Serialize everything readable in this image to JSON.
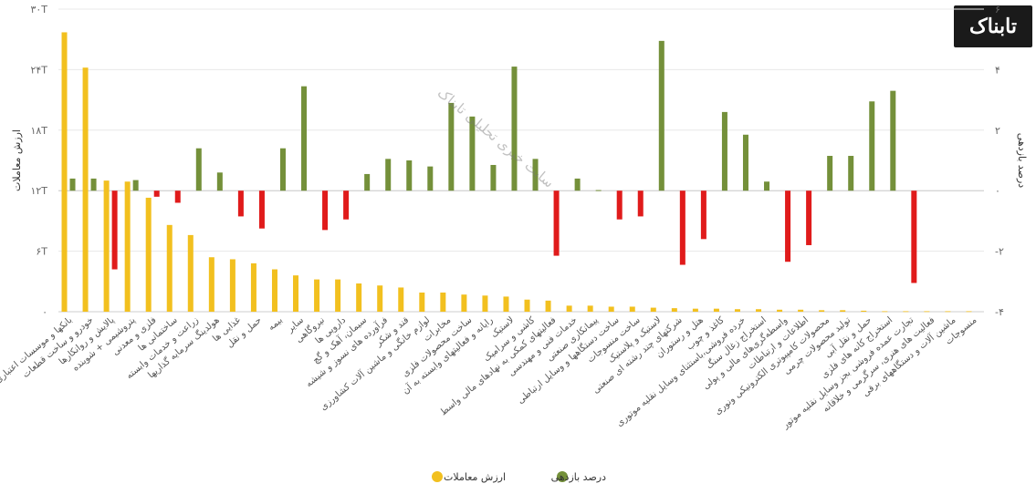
{
  "logo": {
    "text": "تابناک"
  },
  "chart_data": {
    "type": "bar",
    "title": "",
    "left_axis": {
      "label": "ارزش معاملات",
      "ylim": [
        0,
        30
      ],
      "ticks": [
        "۰",
        "۶T",
        "۱۲T",
        "۱۸T",
        "۲۴T",
        "۳۰T"
      ]
    },
    "right_axis": {
      "label": "درصد بازدهی",
      "ylim": [
        -4,
        6
      ],
      "ticks": [
        "-۴",
        "-۲",
        "۰",
        "۲",
        "۴",
        "۶"
      ]
    },
    "legend": {
      "value_label": "ارزش معاملات",
      "return_label": "درصد بازدهی",
      "position": "bottom"
    },
    "colors": {
      "value": "#f2c01f",
      "return_pos": "#74903a",
      "return_neg": "#e01b1b"
    },
    "categories": [
      "بانکها و موسسات اعتباری",
      "خودرو و ساخت قطعات",
      "پالایش و روانکارها",
      "پتروشیمی + شوینده",
      "فلزی و معدنی",
      "ساختمانی ها",
      "زراعت و خدمات وابسته",
      "هولدینگ سرمایه گذاریها",
      "غذایی ها",
      "حمل و نقل",
      "بیمه",
      "سایر",
      "نیروگاهی",
      "دارویی ها",
      "سیمان، آهک و گچ",
      "فرآورده های نسوز و شیشه",
      "قند و شکر",
      "لوازم خانگی و ماشین آلات کشاورزی",
      "مخابرات",
      "ساخت محصولات فلزی",
      "رایانه و فعالیتهای وابسته به آن",
      "لاستیک",
      "کاشی و سرامیک",
      "فعالیتهای کمکی به نهادهای مالی واسط",
      "خدمات فنی و مهندسی",
      "پیمانکاری صنعتی",
      "ساخت دستگاهها و وسایل ارتباطی",
      "ساخت منسوجات",
      "لاستیک و پلاستیک",
      "شرکتهای چند رشته ای صنعتی",
      "هتل و رستوران",
      "کاغذ و چوب",
      "خرده فروشی،باستثنای وسایل نقلیه موتوری",
      "استخراج زغال سنگ",
      "واسطه‌گری‌های مالی و پولی",
      "اطلاعات و ارتباطات",
      "محصولات کامپیوتری الکترونیکی ونوری",
      "تولید محصولات چرمی",
      "حمل و نقل آبی",
      "استخراج کانه های فلزی",
      "تجارت عمده فروشی بجز وسایل نقلیه موتور",
      "فعالیت های هنری، سرگرمی و خلاقانه",
      "ماشین آلات و دستگاههای برقی",
      "منسوجات"
    ],
    "series": [
      {
        "name": "ارزش معاملات",
        "axis": "left",
        "units": "T",
        "values": [
          27.7,
          24.2,
          13.0,
          12.9,
          11.3,
          8.6,
          7.6,
          5.4,
          5.2,
          4.8,
          4.2,
          3.6,
          3.2,
          3.2,
          2.8,
          2.6,
          2.4,
          1.9,
          1.9,
          1.7,
          1.6,
          1.5,
          1.2,
          1.1,
          0.6,
          0.6,
          0.5,
          0.5,
          0.4,
          0.35,
          0.3,
          0.3,
          0.25,
          0.25,
          0.2,
          0.2,
          0.15,
          0.15,
          0.1,
          0.05,
          0.05,
          0.05,
          0.05,
          0.05
        ]
      },
      {
        "name": "درصد بازدهی",
        "axis": "right",
        "units": "%",
        "values": [
          0.4,
          0.4,
          -2.6,
          0.35,
          -0.2,
          -0.4,
          1.4,
          0.6,
          -0.85,
          -1.25,
          1.4,
          3.45,
          -1.3,
          -0.95,
          0.55,
          1.05,
          1.0,
          0.8,
          2.9,
          2.45,
          0.85,
          4.1,
          1.05,
          -2.15,
          0.4,
          0.02,
          -0.95,
          -0.85,
          4.95,
          -2.45,
          -1.6,
          2.6,
          1.85,
          0.3,
          -2.35,
          -1.8,
          1.15,
          1.15,
          2.95,
          3.3,
          -3.05,
          0,
          0,
          0
        ]
      }
    ],
    "annotation": "سایت خبری تحلیلی تابناک"
  }
}
